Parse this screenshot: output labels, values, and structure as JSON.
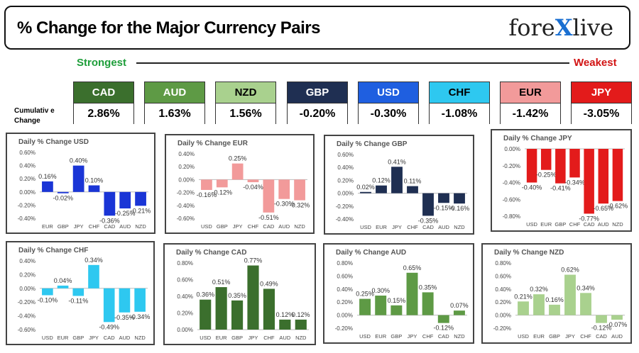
{
  "header": {
    "title": "% Change for the Major Currency Pairs",
    "logo_left": "fore",
    "logo_x": "X",
    "logo_right": "live"
  },
  "ranking": {
    "strongest": "Strongest",
    "weakest": "Weakest",
    "cumulative_label": "Cumulativ e Change"
  },
  "currencies": [
    {
      "name": "CAD",
      "value": "2.86%",
      "color": "#3b6f2d",
      "text": "#fff"
    },
    {
      "name": "AUD",
      "value": "1.63%",
      "color": "#5e9a45",
      "text": "#fff"
    },
    {
      "name": "NZD",
      "value": "1.56%",
      "color": "#a9d18e",
      "text": "#000"
    },
    {
      "name": "GBP",
      "value": "-0.20%",
      "color": "#1f2f52",
      "text": "#fff"
    },
    {
      "name": "USD",
      "value": "-0.30%",
      "color": "#1f5fe0",
      "text": "#fff"
    },
    {
      "name": "CHF",
      "value": "-1.08%",
      "color": "#2ec8f0",
      "text": "#000"
    },
    {
      "name": "EUR",
      "value": "-1.42%",
      "color": "#f29a9a",
      "text": "#000"
    },
    {
      "name": "JPY",
      "value": "-3.05%",
      "color": "#e31b1b",
      "text": "#fff"
    }
  ],
  "chart_data": [
    {
      "type": "bar",
      "title": "Daily % Change USD",
      "color": "#1a35d6",
      "categories": [
        "EUR",
        "GBP",
        "JPY",
        "CHF",
        "CAD",
        "AUD",
        "NZD"
      ],
      "values": [
        0.16,
        -0.02,
        0.4,
        0.1,
        -0.36,
        -0.25,
        -0.21
      ],
      "labels": [
        "0.16%",
        "-0.02%",
        "0.40%",
        "0.10%",
        "-0.36%",
        "-0.25%",
        "-0.21%"
      ],
      "yticks": [
        "0.60%",
        "0.40%",
        "0.20%",
        "0.00%",
        "-0.20%",
        "-0.40%"
      ],
      "ylim": [
        -0.4,
        0.6
      ]
    },
    {
      "type": "bar",
      "title": "Daily % Change EUR",
      "color": "#f29a9a",
      "categories": [
        "USD",
        "GBP",
        "JPY",
        "CHF",
        "CAD",
        "AUD",
        "NZD"
      ],
      "values": [
        -0.16,
        -0.12,
        0.25,
        -0.04,
        -0.51,
        -0.3,
        -0.32
      ],
      "labels": [
        "-0.16%",
        "-0.12%",
        "0.25%",
        "-0.04%",
        "-0.51%",
        "-0.30%",
        "-0.32%"
      ],
      "yticks": [
        "0.40%",
        "0.20%",
        "0.00%",
        "-0.20%",
        "-0.40%",
        "-0.60%"
      ],
      "ylim": [
        -0.6,
        0.4
      ]
    },
    {
      "type": "bar",
      "title": "Daily % Change GBP",
      "color": "#1f2f52",
      "categories": [
        "USD",
        "EUR",
        "JPY",
        "CHF",
        "CAD",
        "AUD",
        "NZD"
      ],
      "values": [
        0.02,
        0.12,
        0.41,
        0.11,
        -0.35,
        -0.15,
        -0.16
      ],
      "labels": [
        "0.02%",
        "0.12%",
        "0.41%",
        "0.11%",
        "-0.35%",
        "-0.15%",
        "-0.16%"
      ],
      "yticks": [
        "0.60%",
        "0.40%",
        "0.20%",
        "0.00%",
        "-0.20%",
        "-0.40%"
      ],
      "ylim": [
        -0.4,
        0.6
      ]
    },
    {
      "type": "bar",
      "title": "Daily % Change JPY",
      "color": "#e31b1b",
      "categories": [
        "USD",
        "EUR",
        "GBP",
        "CHF",
        "CAD",
        "AUD",
        "NZD"
      ],
      "values": [
        -0.4,
        -0.25,
        -0.41,
        -0.34,
        -0.77,
        -0.65,
        -0.62
      ],
      "labels": [
        "-0.40%",
        "-0.25%",
        "-0.41%",
        "-0.34%",
        "-0.77%",
        "-0.65%",
        "-0.62%"
      ],
      "yticks": [
        "0.00%",
        "-0.20%",
        "-0.40%",
        "-0.60%",
        "-0.80%"
      ],
      "ylim": [
        -0.8,
        0.0
      ]
    },
    {
      "type": "bar",
      "title": "Daily % Change CHF",
      "color": "#2ec8f0",
      "categories": [
        "USD",
        "EUR",
        "GBP",
        "JPY",
        "CAD",
        "AUD",
        "NZD"
      ],
      "values": [
        -0.1,
        0.04,
        -0.11,
        0.34,
        -0.49,
        -0.35,
        -0.34
      ],
      "labels": [
        "-0.10%",
        "0.04%",
        "-0.11%",
        "0.34%",
        "-0.49%",
        "-0.35%",
        "-0.34%"
      ],
      "yticks": [
        "0.40%",
        "0.20%",
        "0.00%",
        "-0.20%",
        "-0.40%",
        "-0.60%"
      ],
      "ylim": [
        -0.6,
        0.4
      ]
    },
    {
      "type": "bar",
      "title": "Daily % Change CAD",
      "color": "#3b6f2d",
      "categories": [
        "USD",
        "EUR",
        "GBP",
        "JPY",
        "CHF",
        "AUD",
        "NZD"
      ],
      "values": [
        0.36,
        0.51,
        0.35,
        0.77,
        0.49,
        0.12,
        0.12
      ],
      "labels": [
        "0.36%",
        "0.51%",
        "0.35%",
        "0.77%",
        "0.49%",
        "0.12%",
        "0.12%"
      ],
      "yticks": [
        "0.80%",
        "0.60%",
        "0.40%",
        "0.20%",
        "0.00%"
      ],
      "ylim": [
        0.0,
        0.8
      ]
    },
    {
      "type": "bar",
      "title": "Daily % Change AUD",
      "color": "#5e9a45",
      "categories": [
        "USD",
        "EUR",
        "GBP",
        "JPY",
        "CHF",
        "CAD",
        "NZD"
      ],
      "values": [
        0.25,
        0.3,
        0.15,
        0.65,
        0.35,
        -0.12,
        0.07
      ],
      "labels": [
        "0.25%",
        "0.30%",
        "0.15%",
        "0.65%",
        "0.35%",
        "-0.12%",
        "0.07%"
      ],
      "yticks": [
        "0.80%",
        "0.60%",
        "0.40%",
        "0.20%",
        "0.00%",
        "-0.20%"
      ],
      "ylim": [
        -0.2,
        0.8
      ]
    },
    {
      "type": "bar",
      "title": "Daily % Change NZD",
      "color": "#a9d18e",
      "categories": [
        "USD",
        "EUR",
        "GBP",
        "JPY",
        "CHF",
        "CAD",
        "AUD"
      ],
      "values": [
        0.21,
        0.32,
        0.16,
        0.62,
        0.34,
        -0.12,
        -0.07
      ],
      "labels": [
        "0.21%",
        "0.32%",
        "0.16%",
        "0.62%",
        "0.34%",
        "-0.12%",
        "-0.07%"
      ],
      "yticks": [
        "0.80%",
        "0.60%",
        "0.40%",
        "0.20%",
        "0.00%",
        "-0.20%"
      ],
      "ylim": [
        -0.2,
        0.8
      ]
    }
  ]
}
